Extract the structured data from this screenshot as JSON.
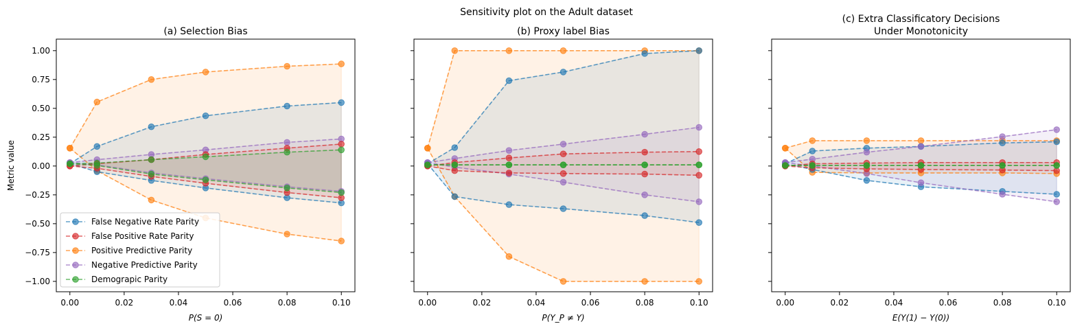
{
  "suptitle": "Sensitivity plot on the Adult dataset",
  "legend": {
    "placement": "lower-left",
    "entries": [
      "False Negative Rate Parity",
      "False Positive Rate Parity",
      "Positive Predictive Parity",
      "Negative Predictive Parity",
      "Demograpic Parity"
    ]
  },
  "chart_data": [
    {
      "type": "line",
      "title": "(a) Selection Bias",
      "title_line2": "",
      "xlabel": "P(S = 0)",
      "ylabel": "Metric value",
      "xlim": [
        -0.005,
        0.105
      ],
      "ylim": [
        -1.09,
        1.1
      ],
      "xticks": [
        "0.00",
        "0.02",
        "0.04",
        "0.06",
        "0.08",
        "0.10"
      ],
      "yticks": [
        "1.00",
        "0.75",
        "0.50",
        "0.25",
        "0.00",
        "−0.25",
        "−0.50",
        "−0.75",
        "−1.00"
      ],
      "x": [
        0.0,
        0.01,
        0.03,
        0.05,
        0.08,
        0.1
      ],
      "series": [
        {
          "name": "False Negative Rate Parity",
          "color": "#1f77b4",
          "upper": [
            0.02,
            0.17,
            0.34,
            0.435,
            0.52,
            0.55
          ],
          "lower": [
            0.02,
            -0.05,
            -0.125,
            -0.19,
            -0.275,
            -0.32
          ]
        },
        {
          "name": "False Positive Rate Parity",
          "color": "#d62728",
          "upper": [
            0.0,
            0.02,
            0.055,
            0.1,
            0.155,
            0.19
          ],
          "lower": [
            0.0,
            -0.02,
            -0.09,
            -0.15,
            -0.23,
            -0.275
          ]
        },
        {
          "name": "Positive Predictive Parity",
          "color": "#ff7f0e",
          "upper": [
            0.155,
            0.555,
            0.75,
            0.815,
            0.865,
            0.885
          ],
          "lower": [
            0.155,
            -0.04,
            -0.295,
            -0.45,
            -0.59,
            -0.65
          ]
        },
        {
          "name": "Negative Predictive Parity",
          "color": "#9467bd",
          "upper": [
            0.03,
            0.055,
            0.1,
            0.14,
            0.205,
            0.235
          ],
          "lower": [
            0.03,
            0.01,
            -0.06,
            -0.11,
            -0.18,
            -0.22
          ]
        },
        {
          "name": "Demograpic Parity",
          "color": "#2ca02c",
          "upper": [
            0.02,
            0.025,
            0.055,
            0.08,
            0.12,
            0.14
          ],
          "lower": [
            0.02,
            0.005,
            -0.07,
            -0.12,
            -0.19,
            -0.23
          ]
        }
      ]
    },
    {
      "type": "line",
      "title": "(b) Proxy label Bias",
      "title_line2": "",
      "xlabel": "P(Y_P ≠ Y)",
      "ylabel": "",
      "xlim": [
        -0.005,
        0.105
      ],
      "ylim": [
        -1.09,
        1.1
      ],
      "xticks": [
        "0.00",
        "0.02",
        "0.04",
        "0.06",
        "0.08",
        "0.10"
      ],
      "yticks": [],
      "x": [
        0.0,
        0.01,
        0.03,
        0.05,
        0.08,
        0.1
      ],
      "series": [
        {
          "name": "False Negative Rate Parity",
          "color": "#1f77b4",
          "upper": [
            0.02,
            0.16,
            0.74,
            0.815,
            0.975,
            1.0
          ],
          "lower": [
            0.02,
            -0.265,
            -0.335,
            -0.37,
            -0.43,
            -0.49
          ]
        },
        {
          "name": "False Positive Rate Parity",
          "color": "#d62728",
          "upper": [
            0.0,
            0.03,
            0.07,
            0.105,
            0.12,
            0.125
          ],
          "lower": [
            0.0,
            -0.04,
            -0.06,
            -0.065,
            -0.07,
            -0.08
          ]
        },
        {
          "name": "Positive Predictive Parity",
          "color": "#ff7f0e",
          "upper": [
            0.155,
            1.0,
            1.0,
            1.0,
            1.0,
            1.0
          ],
          "lower": [
            0.155,
            -0.265,
            -0.785,
            -1.0,
            -1.0,
            -1.0
          ]
        },
        {
          "name": "Negative Predictive Parity",
          "color": "#9467bd",
          "upper": [
            0.03,
            0.065,
            0.135,
            0.19,
            0.275,
            0.335
          ],
          "lower": [
            0.03,
            -0.01,
            -0.07,
            -0.14,
            -0.25,
            -0.31
          ]
        },
        {
          "name": "Demograpic Parity",
          "color": "#2ca02c",
          "upper": [
            0.01,
            0.01,
            0.01,
            0.01,
            0.01,
            0.01
          ],
          "lower": [
            0.01,
            0.01,
            0.01,
            0.01,
            0.01,
            0.01
          ]
        }
      ]
    },
    {
      "type": "line",
      "title": "(c) Extra Classificatory Decisions",
      "title_line2": "Under Monotonicity",
      "xlabel": "E(Y(1) − Y(0))",
      "ylabel": "",
      "xlim": [
        -0.005,
        0.105
      ],
      "ylim": [
        -1.09,
        1.1
      ],
      "xticks": [
        "0.00",
        "0.02",
        "0.04",
        "0.06",
        "0.08",
        "0.10"
      ],
      "yticks": [],
      "x": [
        0.0,
        0.01,
        0.03,
        0.05,
        0.08,
        0.1
      ],
      "series": [
        {
          "name": "False Negative Rate Parity",
          "color": "#1f77b4",
          "upper": [
            0.02,
            0.13,
            0.155,
            0.17,
            0.2,
            0.21
          ],
          "lower": [
            0.02,
            -0.03,
            -0.125,
            -0.18,
            -0.22,
            -0.245
          ]
        },
        {
          "name": "False Positive Rate Parity",
          "color": "#d62728",
          "upper": [
            0.0,
            0.02,
            0.025,
            0.03,
            0.03,
            0.03
          ],
          "lower": [
            0.0,
            -0.015,
            -0.025,
            -0.03,
            -0.035,
            -0.04
          ]
        },
        {
          "name": "Positive Predictive Parity",
          "color": "#ff7f0e",
          "upper": [
            0.155,
            0.22,
            0.22,
            0.22,
            0.22,
            0.22
          ],
          "lower": [
            0.155,
            -0.055,
            -0.06,
            -0.06,
            -0.06,
            -0.065
          ]
        },
        {
          "name": "Negative Predictive Parity",
          "color": "#9467bd",
          "upper": [
            0.03,
            0.06,
            0.12,
            0.17,
            0.255,
            0.315
          ],
          "lower": [
            0.03,
            0.0,
            -0.065,
            -0.145,
            -0.245,
            -0.31
          ]
        },
        {
          "name": "Demograpic Parity",
          "color": "#2ca02c",
          "upper": [
            0.005,
            0.005,
            0.005,
            0.005,
            0.005,
            0.005
          ],
          "lower": [
            0.005,
            0.005,
            0.005,
            0.005,
            0.005,
            0.005
          ]
        }
      ]
    }
  ]
}
